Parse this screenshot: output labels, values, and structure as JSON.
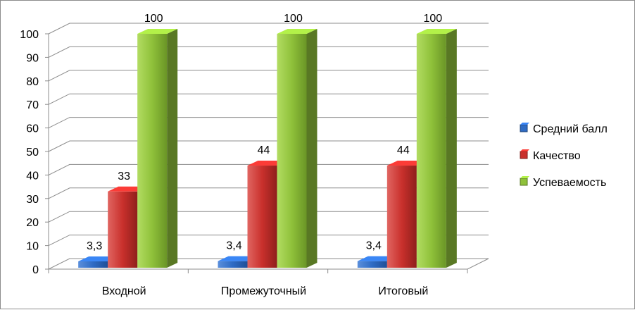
{
  "chart_data": {
    "type": "bar",
    "categories": [
      "Входной",
      "Промежуточный",
      "Итоговый"
    ],
    "series": [
      {
        "name": "Средний балл",
        "values": [
          3.3,
          3.4,
          3.4
        ],
        "labels": [
          "3,3",
          "3,4",
          "3,4"
        ],
        "color": "#2e6bc4"
      },
      {
        "name": "Качество",
        "values": [
          33,
          44,
          44
        ],
        "labels": [
          "33",
          "44",
          "44"
        ],
        "color": "#c9302c"
      },
      {
        "name": "Успеваемость",
        "values": [
          100,
          100,
          100
        ],
        "labels": [
          "100",
          "100",
          "100"
        ],
        "color": "#8fc13a"
      }
    ],
    "yticks": [
      "0",
      "10",
      "20",
      "30",
      "40",
      "50",
      "60",
      "70",
      "80",
      "90",
      "100"
    ],
    "ylim": [
      0,
      100
    ],
    "grid": true,
    "legend_position": "right",
    "style": "3d-column"
  }
}
